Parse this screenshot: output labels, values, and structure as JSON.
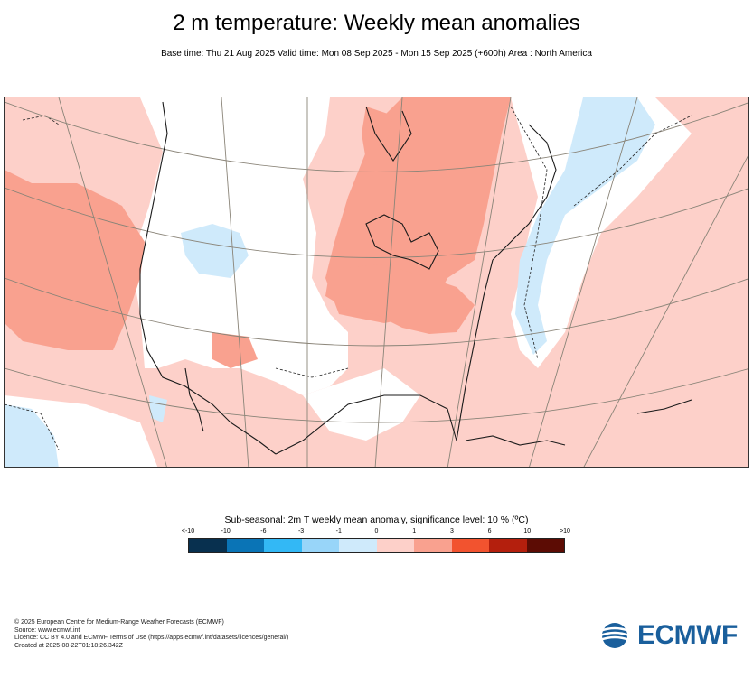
{
  "title": "2 m temperature: Weekly mean anomalies",
  "subtitle": "Base time: Thu 21 Aug 2025 Valid time: Mon 08 Sep 2025 - Mon 15 Sep 2025 (+600h) Area : North America",
  "legend": {
    "title": "Sub-seasonal: 2m T weekly mean anomaly, significance level: 10 % (ºC)",
    "ticks": [
      "<-10",
      "-10",
      "-6",
      "-3",
      "-1",
      "0",
      "1",
      "3",
      "6",
      "10",
      ">10"
    ],
    "colors": [
      "#08304f",
      "#0a74b6",
      "#33b8f5",
      "#98d5f9",
      "#cfeafb",
      "#ffffff",
      "#fdd0c9",
      "#f9a18f",
      "#f2532f",
      "#b41f0d",
      "#5c0c04"
    ]
  },
  "footer": {
    "line1": "© 2025 European Centre for Medium-Range Weather Forecasts (ECMWF)",
    "line2": "Source: www.ecmwf.int",
    "line3": "Licence: CC BY 4.0 and ECMWF Terms of Use (https://apps.ecmwf.int/datasets/licences/general/)",
    "line4": "Created at 2025-08-22T01:18:26.342Z"
  },
  "logo": {
    "text": "ECMWF",
    "color": "#1a5f9c"
  }
}
